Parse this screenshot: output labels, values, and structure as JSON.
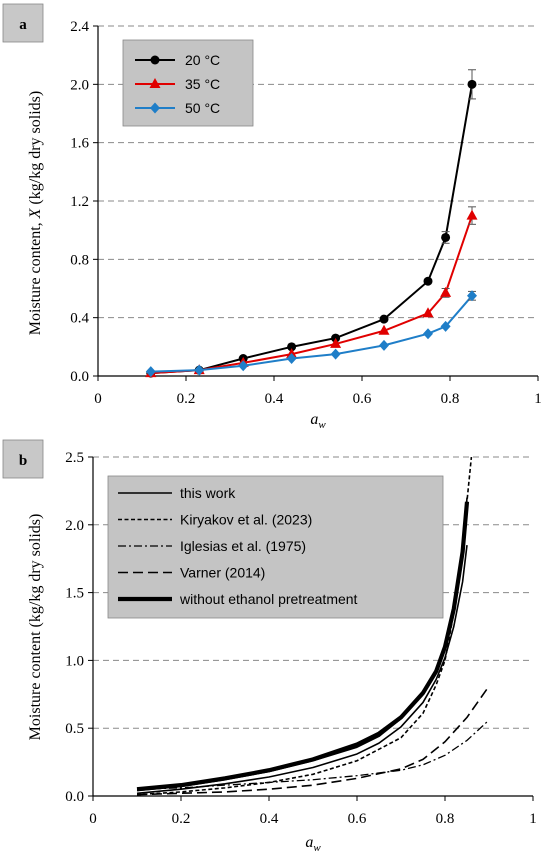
{
  "chart_data": [
    {
      "panel": "a",
      "type": "line",
      "xlabel": "a",
      "xlabel_sub": "w",
      "ylabel_pre": "Moisture content, ",
      "ylabel_italic": "X",
      "ylabel_post": " (kg/kg dry solids)",
      "xlim": [
        0,
        1
      ],
      "ylim": [
        0,
        2.4
      ],
      "xticks": [
        "0",
        "0.2",
        "0.4",
        "0.6",
        "0.8",
        "1"
      ],
      "yticks": [
        "0.0",
        "0.4",
        "0.8",
        "1.2",
        "1.6",
        "2.0",
        "2.4"
      ],
      "grid": "horizontal dashed",
      "legend_position": "top-left",
      "series": [
        {
          "name": "20 °C",
          "color": "#000000",
          "marker": "circle",
          "x": [
            0.12,
            0.23,
            0.33,
            0.44,
            0.54,
            0.65,
            0.75,
            0.79,
            0.85
          ],
          "y": [
            0.02,
            0.04,
            0.12,
            0.2,
            0.26,
            0.39,
            0.65,
            0.95,
            2.0
          ],
          "err": [
            0,
            0,
            0,
            0,
            0,
            0,
            0,
            0.04,
            0.1
          ]
        },
        {
          "name": "35 °C",
          "color": "#e00000",
          "marker": "triangle",
          "x": [
            0.12,
            0.23,
            0.33,
            0.44,
            0.54,
            0.65,
            0.75,
            0.79,
            0.85
          ],
          "y": [
            0.02,
            0.04,
            0.09,
            0.15,
            0.22,
            0.31,
            0.43,
            0.57,
            1.1
          ],
          "err": [
            0,
            0,
            0,
            0,
            0,
            0,
            0,
            0.03,
            0.06
          ]
        },
        {
          "name": "50 °C",
          "color": "#1f7ec8",
          "marker": "diamond",
          "x": [
            0.12,
            0.23,
            0.33,
            0.44,
            0.54,
            0.65,
            0.75,
            0.79,
            0.85
          ],
          "y": [
            0.03,
            0.04,
            0.07,
            0.12,
            0.15,
            0.21,
            0.29,
            0.34,
            0.55
          ],
          "err": [
            0,
            0,
            0,
            0,
            0,
            0,
            0,
            0,
            0.03
          ]
        }
      ]
    },
    {
      "panel": "b",
      "type": "line",
      "xlabel": "a",
      "xlabel_sub": "w",
      "ylabel": "Moisture content (kg/kg dry solids)",
      "xlim": [
        0,
        1
      ],
      "ylim": [
        0,
        2.5
      ],
      "xticks": [
        "0",
        "0.2",
        "0.4",
        "0.6",
        "0.8",
        "1"
      ],
      "yticks": [
        "0.0",
        "0.5",
        "1.0",
        "1.5",
        "2.0",
        "2.5"
      ],
      "grid": "horizontal dashed",
      "legend_position": "top-left",
      "series": [
        {
          "name": "this work",
          "style": "solid",
          "x": [
            0.1,
            0.2,
            0.3,
            0.4,
            0.5,
            0.6,
            0.65,
            0.7,
            0.75,
            0.78,
            0.8,
            0.82,
            0.84,
            0.85
          ],
          "y": [
            0.02,
            0.05,
            0.09,
            0.14,
            0.21,
            0.31,
            0.39,
            0.51,
            0.69,
            0.86,
            1.02,
            1.25,
            1.58,
            1.85
          ]
        },
        {
          "name": "this work (upper)",
          "style": "solid",
          "x": [
            0.1,
            0.2,
            0.3,
            0.4,
            0.5,
            0.6,
            0.65,
            0.7,
            0.75,
            0.78,
            0.8,
            0.82,
            0.84,
            0.85
          ],
          "y": [
            0.04,
            0.07,
            0.12,
            0.18,
            0.26,
            0.36,
            0.44,
            0.57,
            0.76,
            0.93,
            1.12,
            1.38,
            1.8,
            2.2
          ]
        },
        {
          "name": "Kiryakov et al. (2023)",
          "style": "short-dash",
          "x": [
            0.1,
            0.2,
            0.3,
            0.4,
            0.5,
            0.6,
            0.7,
            0.75,
            0.78,
            0.8,
            0.82,
            0.84,
            0.86
          ],
          "y": [
            0.01,
            0.03,
            0.06,
            0.1,
            0.16,
            0.26,
            0.43,
            0.61,
            0.82,
            1.0,
            1.35,
            1.85,
            2.5
          ]
        },
        {
          "name": "Iglesias et al. (1975)",
          "style": "dash-dot",
          "x": [
            0.1,
            0.2,
            0.3,
            0.4,
            0.5,
            0.6,
            0.7,
            0.75,
            0.8,
            0.85,
            0.9
          ],
          "y": [
            0.05,
            0.06,
            0.08,
            0.1,
            0.12,
            0.15,
            0.19,
            0.23,
            0.3,
            0.41,
            0.56
          ]
        },
        {
          "name": "Varner (2014)",
          "style": "long-dash",
          "x": [
            0.1,
            0.2,
            0.3,
            0.4,
            0.5,
            0.6,
            0.7,
            0.75,
            0.8,
            0.85,
            0.9
          ],
          "y": [
            0.01,
            0.02,
            0.03,
            0.05,
            0.08,
            0.13,
            0.2,
            0.27,
            0.4,
            0.58,
            0.81
          ]
        },
        {
          "name": "without ethanol pretreatment",
          "style": "thick",
          "x": [
            0.1,
            0.2,
            0.3,
            0.4,
            0.5,
            0.6,
            0.65,
            0.7,
            0.75,
            0.78,
            0.8,
            0.82,
            0.84,
            0.85
          ],
          "y": [
            0.05,
            0.08,
            0.13,
            0.19,
            0.27,
            0.38,
            0.46,
            0.58,
            0.76,
            0.92,
            1.1,
            1.38,
            1.8,
            2.17
          ]
        }
      ],
      "legend": [
        {
          "label": "this work",
          "style": "solid"
        },
        {
          "label": "Kiryakov et al. (2023)",
          "style": "short-dash"
        },
        {
          "label": "Iglesias et al. (1975)",
          "style": "dash-dot"
        },
        {
          "label": "Varner (2014)",
          "style": "long-dash"
        },
        {
          "label": "without ethanol pretreatment",
          "style": "thick"
        }
      ]
    }
  ]
}
